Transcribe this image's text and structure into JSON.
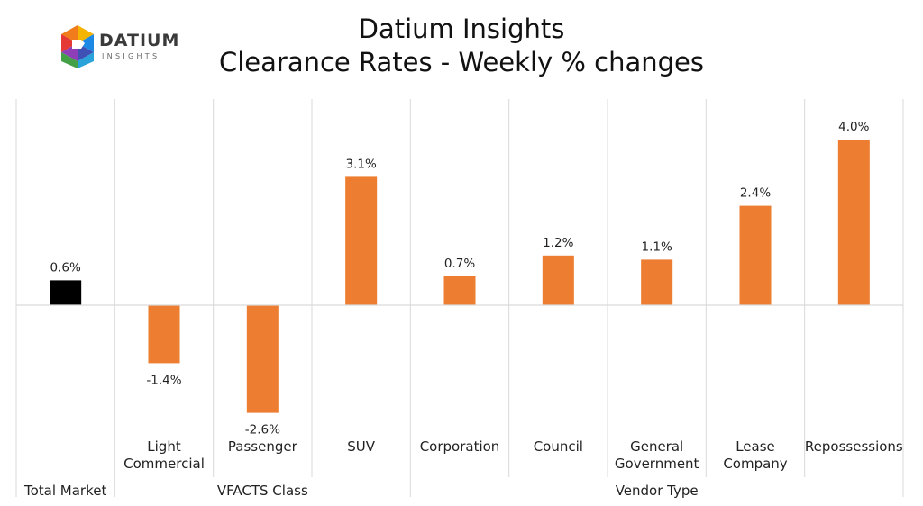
{
  "logo": {
    "name": "DATIUM",
    "tagline": "INSIGHTS"
  },
  "title": "Datium Insights",
  "subtitle": "Clearance Rates - Weekly % changes",
  "colors": {
    "total": "#000000",
    "bar": "#ED7D31",
    "grid": "#D9D9D9",
    "axis": "#D9D9D9"
  },
  "chart_data": {
    "type": "bar",
    "title": "Datium Insights",
    "subtitle": "Clearance Rates - Weekly % changes",
    "categories": [
      [
        "Total Market",
        ""
      ],
      [
        "Light",
        "Commercial"
      ],
      [
        "Passenger",
        ""
      ],
      [
        "SUV",
        ""
      ],
      [
        "Corporation",
        ""
      ],
      [
        "Council",
        ""
      ],
      [
        "General",
        "Government"
      ],
      [
        "Lease",
        "Company"
      ],
      [
        "Repossessions",
        ""
      ]
    ],
    "values": [
      0.6,
      -1.4,
      -2.6,
      3.1,
      0.7,
      1.2,
      1.1,
      2.4,
      4.0
    ],
    "labels": [
      "0.6%",
      "-1.4%",
      "-2.6%",
      "3.1%",
      "0.7%",
      "1.2%",
      "1.1%",
      "2.4%",
      "4.0%"
    ],
    "groups": [
      {
        "name": "Total Market",
        "start": 0,
        "end": 0
      },
      {
        "name": "VFACTS Class",
        "start": 1,
        "end": 3
      },
      {
        "name": "Vendor Type",
        "start": 4,
        "end": 8
      }
    ],
    "ylim": [
      -3.0,
      4.8
    ],
    "grid": false,
    "xlabel": "",
    "ylabel": ""
  }
}
